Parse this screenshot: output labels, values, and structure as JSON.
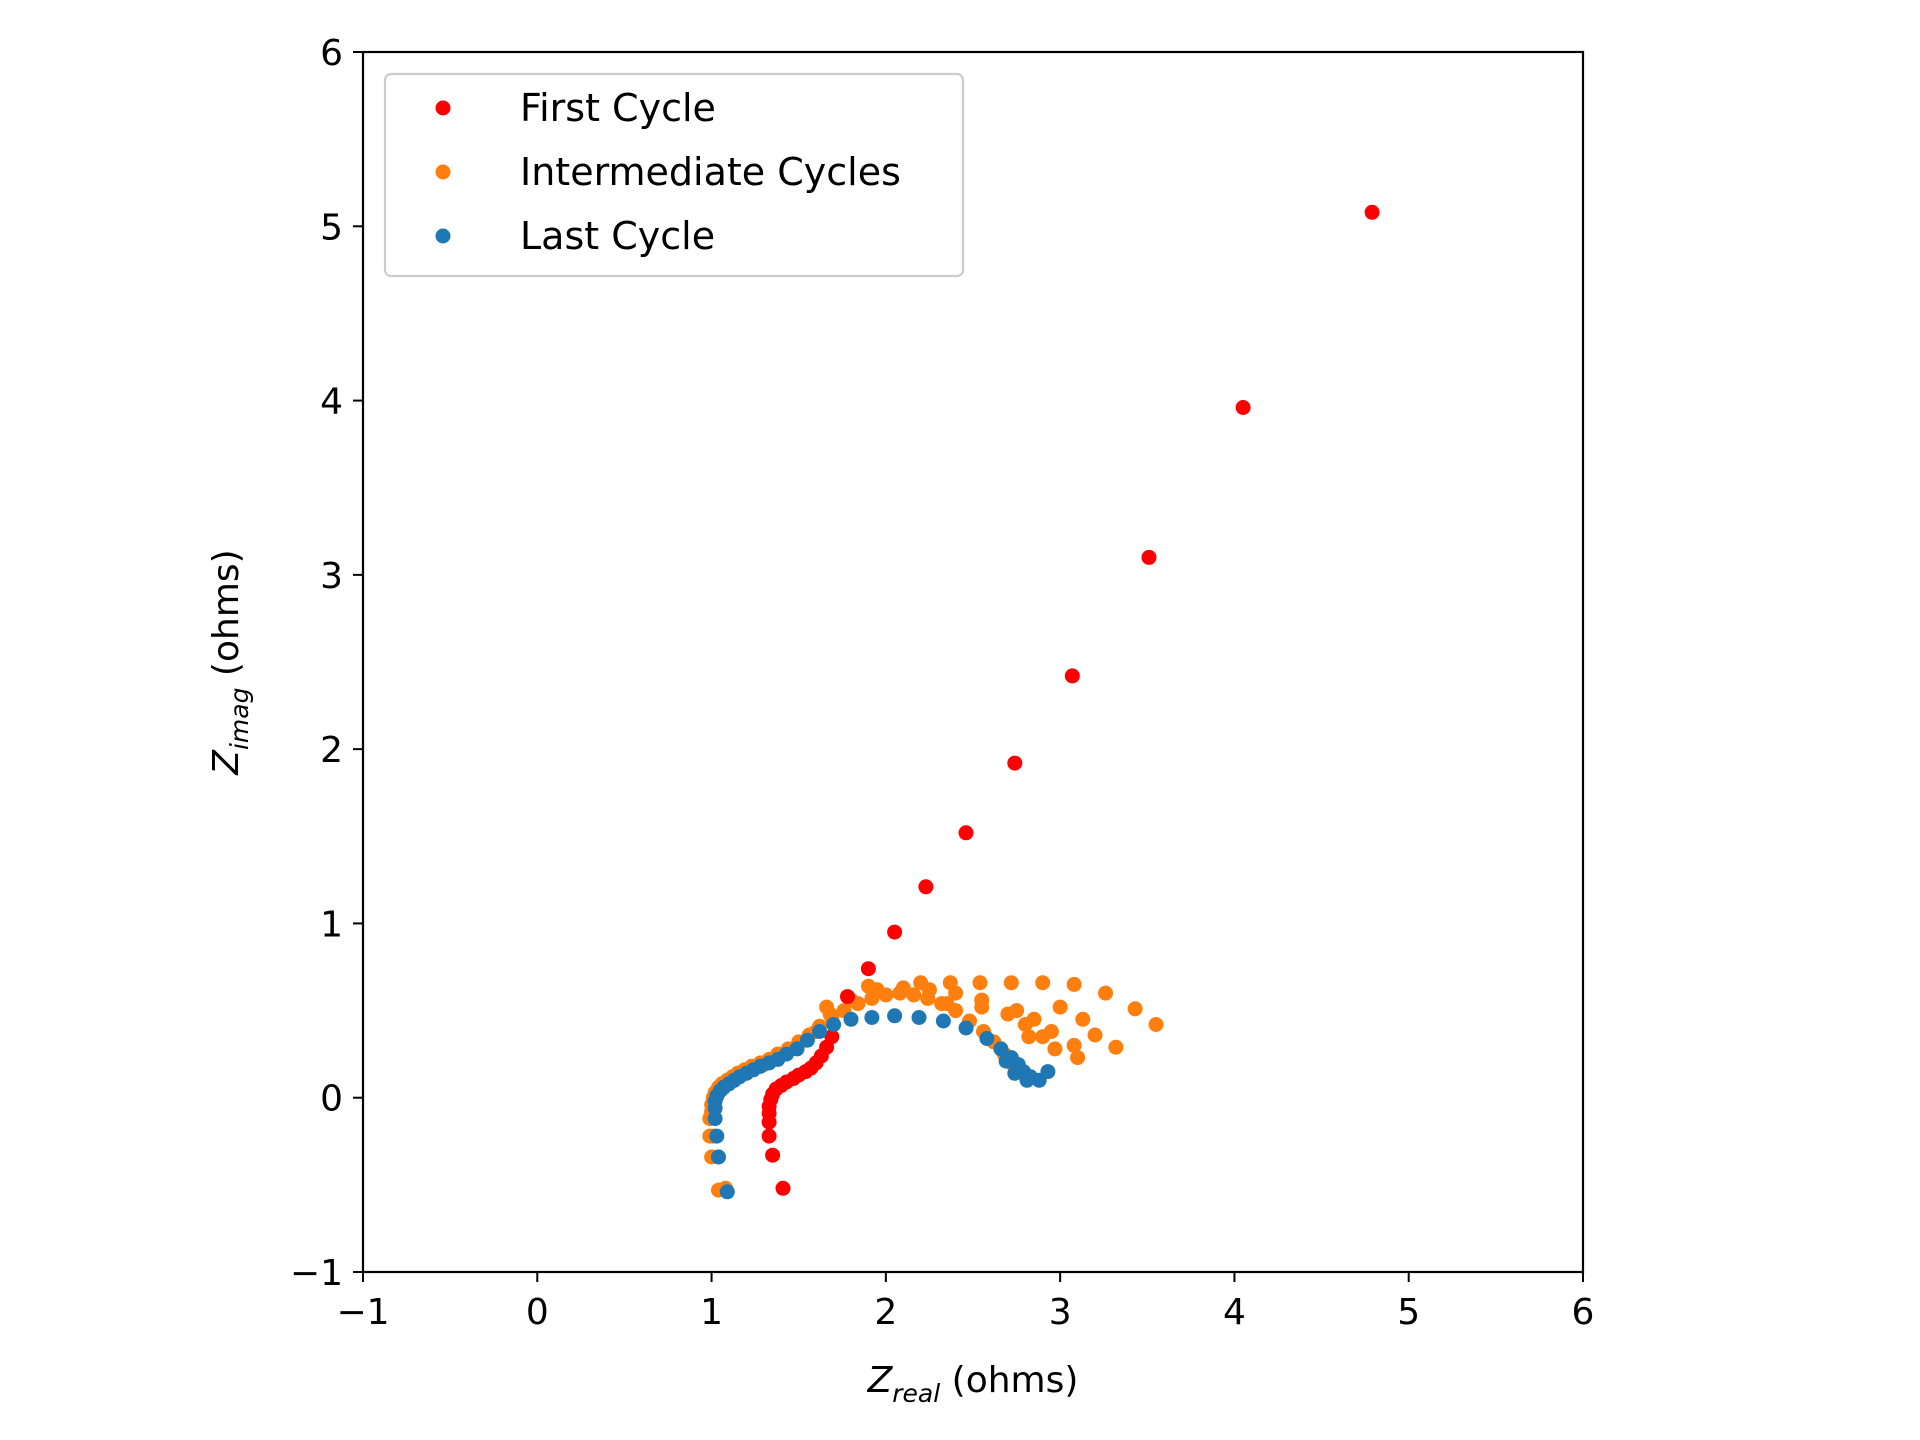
{
  "chart_data": {
    "type": "scatter",
    "xlabel": {
      "main": "Z",
      "sub": "real",
      "rest": " (ohms)"
    },
    "ylabel": {
      "main": "Z",
      "sub": "imag",
      "rest": " (ohms)"
    },
    "xlim": [
      -1,
      6
    ],
    "ylim": [
      -1,
      6
    ],
    "xticks": [
      -1,
      0,
      1,
      2,
      3,
      4,
      5,
      6
    ],
    "yticks": [
      -1,
      0,
      1,
      2,
      3,
      4,
      5,
      6
    ],
    "tick_labels": {
      "x": [
        "−1",
        "0",
        "1",
        "2",
        "3",
        "4",
        "5",
        "6"
      ],
      "y": [
        "−1",
        "0",
        "1",
        "2",
        "3",
        "4",
        "5",
        "6"
      ]
    },
    "grid": false,
    "legend_position": "top-left",
    "series": [
      {
        "name": "Intermediate Cycles",
        "color": "#ff7f0e",
        "points": [
          [
            1.04,
            -0.53
          ],
          [
            1.08,
            -0.52
          ],
          [
            1.0,
            -0.34
          ],
          [
            1.04,
            -0.34
          ],
          [
            0.99,
            -0.22
          ],
          [
            1.01,
            -0.22
          ],
          [
            0.99,
            -0.12
          ],
          [
            1.0,
            -0.08
          ],
          [
            1.0,
            -0.04
          ],
          [
            1.01,
            0.0
          ],
          [
            1.02,
            0.03
          ],
          [
            1.04,
            0.06
          ],
          [
            1.06,
            0.08
          ],
          [
            1.09,
            0.1
          ],
          [
            1.12,
            0.12
          ],
          [
            1.15,
            0.14
          ],
          [
            1.19,
            0.16
          ],
          [
            1.23,
            0.18
          ],
          [
            1.28,
            0.2
          ],
          [
            1.33,
            0.22
          ],
          [
            1.38,
            0.25
          ],
          [
            1.44,
            0.28
          ],
          [
            1.5,
            0.32
          ],
          [
            1.56,
            0.36
          ],
          [
            1.62,
            0.41
          ],
          [
            1.69,
            0.46
          ],
          [
            1.76,
            0.5
          ],
          [
            1.84,
            0.54
          ],
          [
            1.92,
            0.57
          ],
          [
            2.0,
            0.59
          ],
          [
            2.08,
            0.6
          ],
          [
            2.16,
            0.59
          ],
          [
            2.24,
            0.57
          ],
          [
            2.32,
            0.54
          ],
          [
            2.4,
            0.5
          ],
          [
            2.48,
            0.44
          ],
          [
            2.56,
            0.38
          ],
          [
            2.62,
            0.32
          ],
          [
            2.68,
            0.25
          ],
          [
            2.72,
            0.2
          ],
          [
            2.76,
            0.16
          ],
          [
            1.2,
            0.14
          ],
          [
            1.3,
            0.19
          ],
          [
            1.4,
            0.25
          ],
          [
            1.5,
            0.31
          ],
          [
            1.6,
            0.38
          ],
          [
            1.68,
            0.48
          ],
          [
            1.8,
            0.56
          ],
          [
            1.95,
            0.62
          ],
          [
            2.1,
            0.63
          ],
          [
            2.25,
            0.62
          ],
          [
            2.4,
            0.6
          ],
          [
            2.55,
            0.56
          ],
          [
            2.7,
            0.48
          ],
          [
            2.8,
            0.42
          ],
          [
            2.9,
            0.35
          ],
          [
            2.97,
            0.28
          ],
          [
            1.66,
            0.52
          ],
          [
            1.9,
            0.64
          ],
          [
            2.2,
            0.66
          ],
          [
            2.37,
            0.66
          ],
          [
            2.54,
            0.66
          ],
          [
            2.72,
            0.66
          ],
          [
            2.9,
            0.66
          ],
          [
            3.08,
            0.65
          ],
          [
            3.26,
            0.6
          ],
          [
            3.43,
            0.51
          ],
          [
            3.55,
            0.42
          ],
          [
            2.35,
            0.54
          ],
          [
            2.55,
            0.52
          ],
          [
            2.75,
            0.5
          ],
          [
            2.85,
            0.45
          ],
          [
            3.0,
            0.52
          ],
          [
            3.13,
            0.45
          ],
          [
            3.2,
            0.36
          ],
          [
            3.32,
            0.29
          ],
          [
            3.08,
            0.3
          ],
          [
            3.1,
            0.23
          ],
          [
            2.82,
            0.35
          ],
          [
            2.95,
            0.38
          ]
        ]
      },
      {
        "name": "First Cycle",
        "color": "#ff0000",
        "points": [
          [
            1.41,
            -0.52
          ],
          [
            1.35,
            -0.33
          ],
          [
            1.33,
            -0.22
          ],
          [
            1.33,
            -0.14
          ],
          [
            1.33,
            -0.09
          ],
          [
            1.33,
            -0.05
          ],
          [
            1.34,
            -0.01
          ],
          [
            1.35,
            0.02
          ],
          [
            1.37,
            0.05
          ],
          [
            1.4,
            0.07
          ],
          [
            1.43,
            0.09
          ],
          [
            1.47,
            0.11
          ],
          [
            1.5,
            0.13
          ],
          [
            1.54,
            0.15
          ],
          [
            1.57,
            0.17
          ],
          [
            1.6,
            0.2
          ],
          [
            1.63,
            0.24
          ],
          [
            1.66,
            0.29
          ],
          [
            1.69,
            0.35
          ],
          [
            1.78,
            0.58
          ],
          [
            1.9,
            0.74
          ],
          [
            2.05,
            0.95
          ],
          [
            2.23,
            1.21
          ],
          [
            2.46,
            1.52
          ],
          [
            2.74,
            1.92
          ],
          [
            3.07,
            2.42
          ],
          [
            3.51,
            3.1
          ],
          [
            4.05,
            3.96
          ],
          [
            4.79,
            5.08
          ]
        ]
      },
      {
        "name": "Last Cycle",
        "color": "#1f77b4",
        "points": [
          [
            1.09,
            -0.54
          ],
          [
            1.04,
            -0.34
          ],
          [
            1.03,
            -0.22
          ],
          [
            1.02,
            -0.12
          ],
          [
            1.02,
            -0.06
          ],
          [
            1.02,
            -0.02
          ],
          [
            1.03,
            0.01
          ],
          [
            1.05,
            0.04
          ],
          [
            1.07,
            0.06
          ],
          [
            1.1,
            0.08
          ],
          [
            1.13,
            0.1
          ],
          [
            1.16,
            0.12
          ],
          [
            1.2,
            0.14
          ],
          [
            1.24,
            0.16
          ],
          [
            1.28,
            0.18
          ],
          [
            1.33,
            0.2
          ],
          [
            1.38,
            0.22
          ],
          [
            1.43,
            0.25
          ],
          [
            1.49,
            0.28
          ],
          [
            1.55,
            0.33
          ],
          [
            1.62,
            0.38
          ],
          [
            1.7,
            0.42
          ],
          [
            1.8,
            0.45
          ],
          [
            1.92,
            0.46
          ],
          [
            2.05,
            0.47
          ],
          [
            2.19,
            0.46
          ],
          [
            2.33,
            0.44
          ],
          [
            2.46,
            0.4
          ],
          [
            2.58,
            0.34
          ],
          [
            2.66,
            0.28
          ],
          [
            2.72,
            0.23
          ],
          [
            2.76,
            0.19
          ],
          [
            2.79,
            0.15
          ],
          [
            2.83,
            0.12
          ],
          [
            2.88,
            0.1
          ],
          [
            2.93,
            0.15
          ],
          [
            2.81,
            0.1
          ],
          [
            2.74,
            0.14
          ],
          [
            2.69,
            0.21
          ]
        ]
      }
    ],
    "legend_order": [
      "First Cycle",
      "Intermediate Cycles",
      "Last Cycle"
    ]
  }
}
